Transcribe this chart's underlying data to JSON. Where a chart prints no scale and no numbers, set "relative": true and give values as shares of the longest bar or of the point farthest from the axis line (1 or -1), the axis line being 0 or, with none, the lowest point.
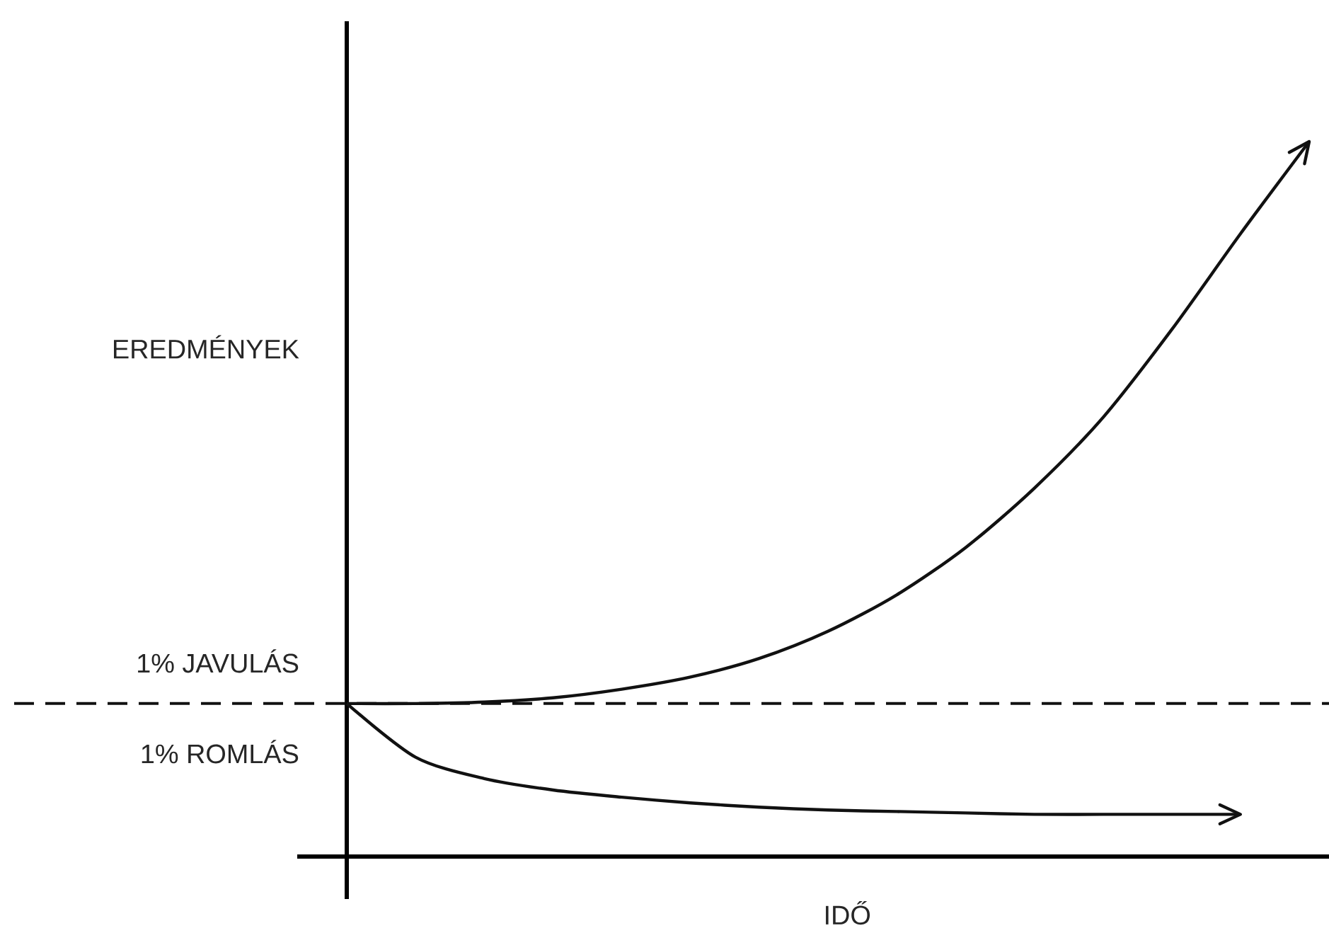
{
  "chart_data": {
    "type": "line",
    "relative": true,
    "ylabel": "EREDMÉNYEK",
    "xlabel": "IDŐ",
    "categories": [
      null,
      null,
      null,
      null,
      null,
      null,
      null,
      null,
      null,
      null,
      null,
      null,
      null,
      null,
      null
    ],
    "series": [
      {
        "name": "1% JAVULÁS",
        "color": "#111111",
        "values": [
          0.214,
          0.214,
          0.216,
          0.222,
          0.234,
          0.251,
          0.277,
          0.315,
          0.366,
          0.432,
          0.515,
          0.614,
          0.737,
          0.871,
          1.0
        ]
      },
      {
        "name": "1% ROMLÁS",
        "color": "#111111",
        "values": [
          0.214,
          0.139,
          0.109,
          0.093,
          0.083,
          0.075,
          0.069,
          0.065,
          0.063,
          0.061,
          0.059,
          0.059,
          0.059,
          0.059,
          null
        ]
      }
    ],
    "ref_lines": [
      {
        "axis": "y",
        "value": 0.214,
        "color": "#111111",
        "line_style": "dashed"
      }
    ]
  }
}
